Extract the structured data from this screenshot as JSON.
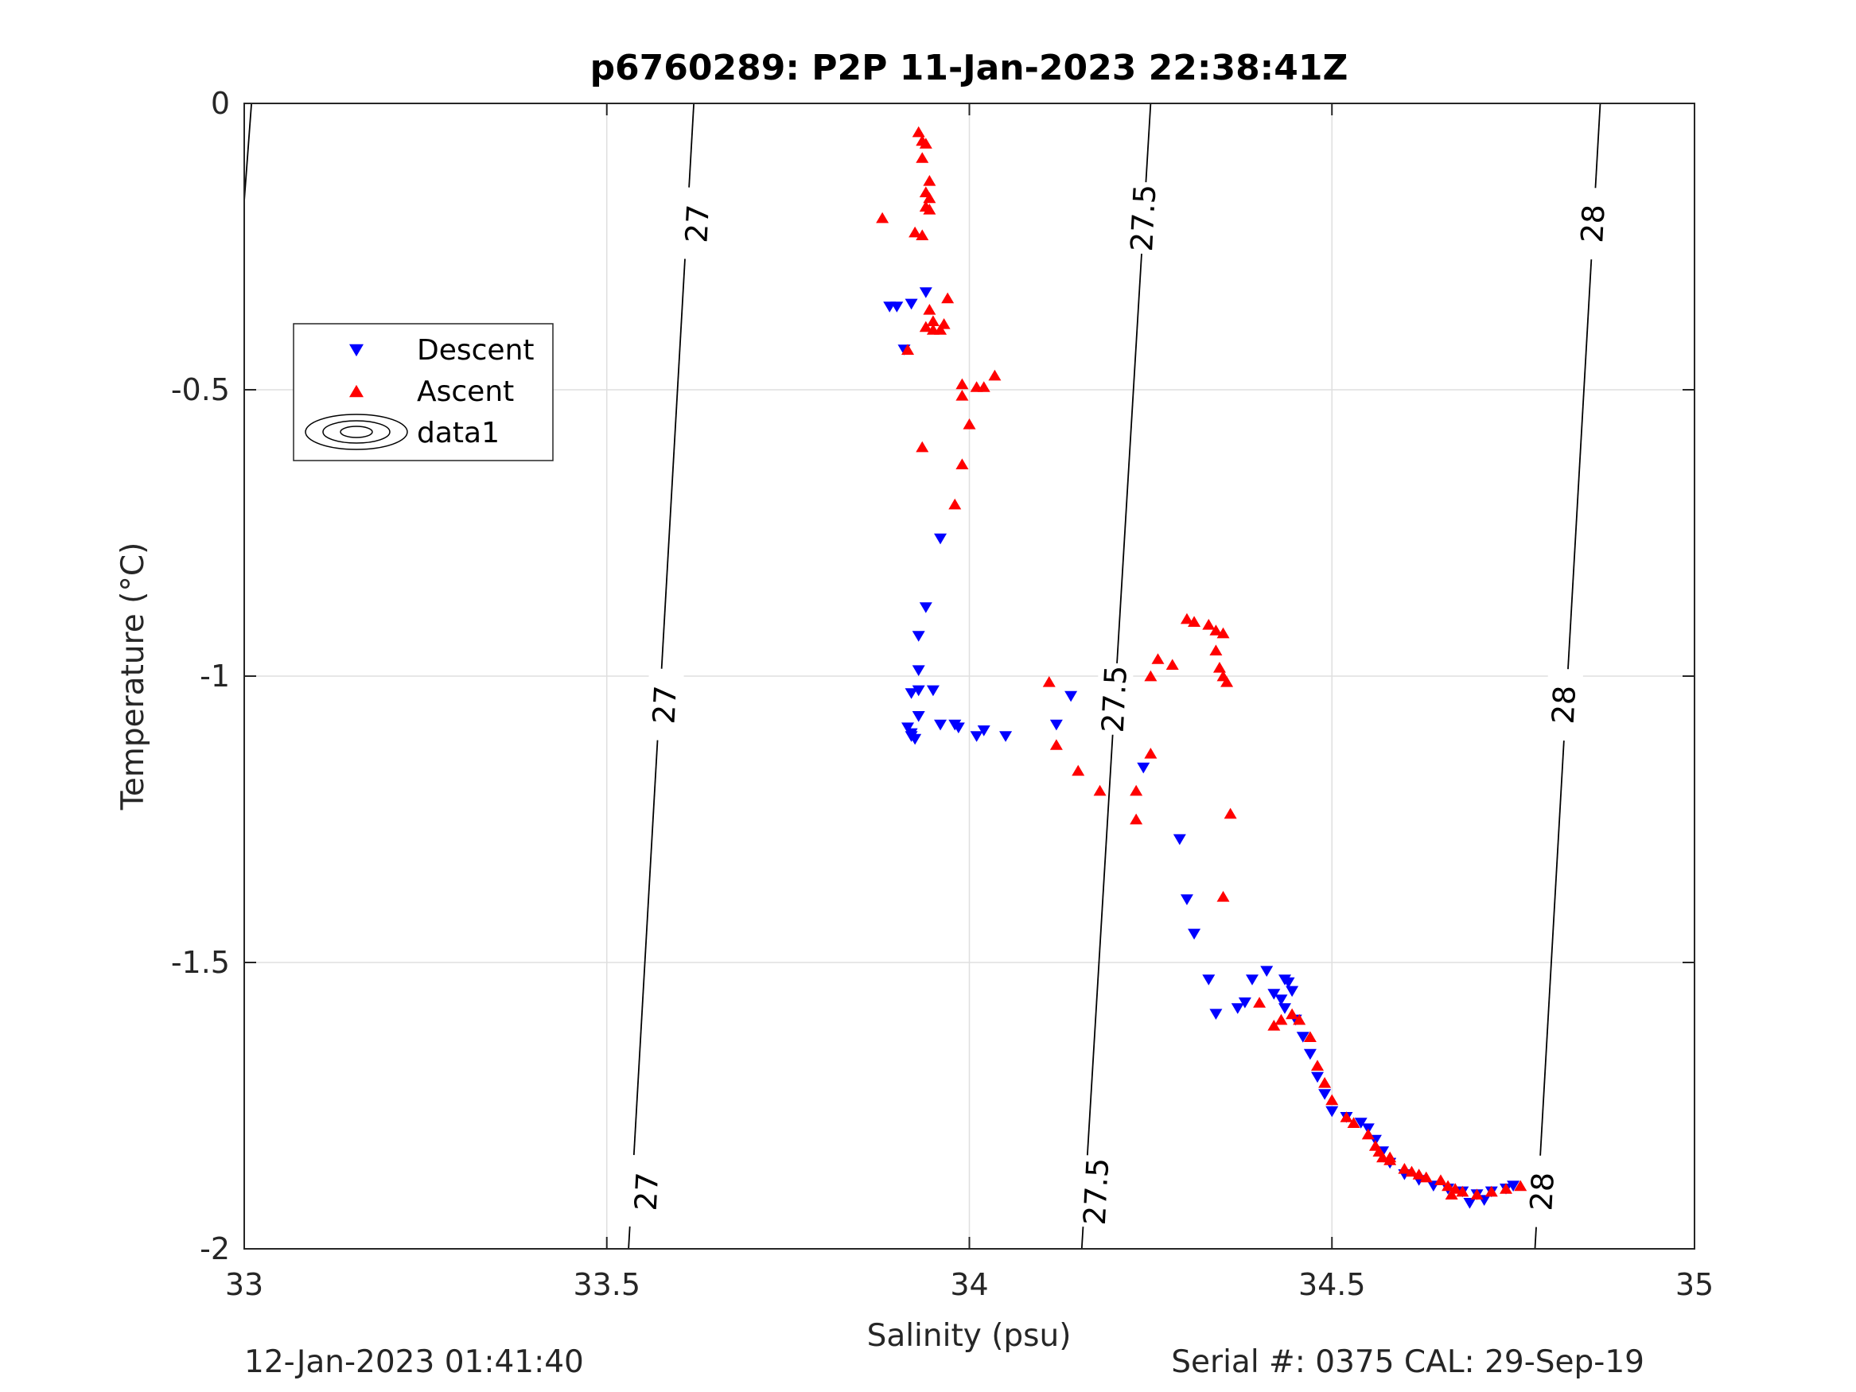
{
  "chart_data": {
    "type": "scatter",
    "title": "p6760289: P2P 11-Jan-2023 22:38:41Z",
    "xlabel": "Salinity (psu)",
    "ylabel": "Temperature (°C)",
    "xlim": [
      33,
      35
    ],
    "ylim": [
      -2,
      0
    ],
    "xticks": [
      33,
      33.5,
      34,
      34.5,
      35
    ],
    "xtick_labels": [
      "33",
      "33.5",
      "34",
      "34.5",
      "35"
    ],
    "yticks": [
      -2,
      -1.5,
      -1,
      -0.5,
      0
    ],
    "ytick_labels": [
      "-2",
      "-1.5",
      "-1",
      "-0.5",
      "0"
    ],
    "grid": true,
    "legend_position": "upper-left",
    "legend": [
      "Descent",
      "Ascent",
      "data1"
    ],
    "series": [
      {
        "name": "Descent",
        "marker": "triangle-down",
        "color": "#0000ff",
        "points": [
          [
            33.89,
            -0.355
          ],
          [
            33.9,
            -0.355
          ],
          [
            33.92,
            -0.35
          ],
          [
            33.94,
            -0.33
          ],
          [
            33.91,
            -0.43
          ],
          [
            33.96,
            -0.76
          ],
          [
            33.94,
            -0.88
          ],
          [
            33.93,
            -0.93
          ],
          [
            33.93,
            -0.99
          ],
          [
            33.92,
            -1.03
          ],
          [
            33.93,
            -1.025
          ],
          [
            33.95,
            -1.025
          ],
          [
            33.93,
            -1.07
          ],
          [
            33.915,
            -1.09
          ],
          [
            33.92,
            -1.1
          ],
          [
            33.92,
            -1.105
          ],
          [
            33.925,
            -1.11
          ],
          [
            33.96,
            -1.085
          ],
          [
            33.98,
            -1.085
          ],
          [
            33.985,
            -1.09
          ],
          [
            34.01,
            -1.105
          ],
          [
            34.02,
            -1.095
          ],
          [
            34.05,
            -1.105
          ],
          [
            34.12,
            -1.085
          ],
          [
            34.14,
            -1.035
          ],
          [
            34.24,
            -1.16
          ],
          [
            34.29,
            -1.285
          ],
          [
            34.3,
            -1.39
          ],
          [
            34.31,
            -1.45
          ],
          [
            34.33,
            -1.53
          ],
          [
            34.34,
            -1.59
          ],
          [
            34.37,
            -1.58
          ],
          [
            34.38,
            -1.57
          ],
          [
            34.39,
            -1.53
          ],
          [
            34.41,
            -1.515
          ],
          [
            34.42,
            -1.555
          ],
          [
            34.43,
            -1.565
          ],
          [
            34.435,
            -1.53
          ],
          [
            34.44,
            -1.535
          ],
          [
            34.445,
            -1.55
          ],
          [
            34.435,
            -1.58
          ],
          [
            34.45,
            -1.6
          ],
          [
            34.46,
            -1.63
          ],
          [
            34.47,
            -1.66
          ],
          [
            34.48,
            -1.7
          ],
          [
            34.49,
            -1.73
          ],
          [
            34.5,
            -1.76
          ],
          [
            34.52,
            -1.77
          ],
          [
            34.54,
            -1.78
          ],
          [
            34.55,
            -1.79
          ],
          [
            34.56,
            -1.81
          ],
          [
            34.57,
            -1.83
          ],
          [
            34.58,
            -1.85
          ],
          [
            34.6,
            -1.87
          ],
          [
            34.62,
            -1.88
          ],
          [
            34.64,
            -1.89
          ],
          [
            34.66,
            -1.895
          ],
          [
            34.68,
            -1.9
          ],
          [
            34.7,
            -1.905
          ],
          [
            34.72,
            -1.9
          ],
          [
            34.74,
            -1.895
          ],
          [
            34.75,
            -1.89
          ],
          [
            34.69,
            -1.92
          ],
          [
            34.71,
            -1.915
          ]
        ]
      },
      {
        "name": "Ascent",
        "marker": "triangle-up",
        "color": "#ff0000",
        "points": [
          [
            33.93,
            -0.05
          ],
          [
            33.935,
            -0.065
          ],
          [
            33.94,
            -0.07
          ],
          [
            33.935,
            -0.095
          ],
          [
            33.945,
            -0.135
          ],
          [
            33.94,
            -0.155
          ],
          [
            33.945,
            -0.165
          ],
          [
            33.94,
            -0.18
          ],
          [
            33.945,
            -0.185
          ],
          [
            33.88,
            -0.2
          ],
          [
            33.925,
            -0.225
          ],
          [
            33.935,
            -0.23
          ],
          [
            33.97,
            -0.34
          ],
          [
            33.945,
            -0.36
          ],
          [
            33.95,
            -0.38
          ],
          [
            33.965,
            -0.385
          ],
          [
            33.94,
            -0.39
          ],
          [
            33.95,
            -0.395
          ],
          [
            33.96,
            -0.395
          ],
          [
            33.915,
            -0.43
          ],
          [
            33.99,
            -0.49
          ],
          [
            34.01,
            -0.495
          ],
          [
            34.02,
            -0.495
          ],
          [
            34.035,
            -0.475
          ],
          [
            33.99,
            -0.51
          ],
          [
            34.0,
            -0.56
          ],
          [
            33.935,
            -0.6
          ],
          [
            33.99,
            -0.63
          ],
          [
            33.98,
            -0.7
          ],
          [
            34.11,
            -1.01
          ],
          [
            34.12,
            -1.12
          ],
          [
            34.15,
            -1.165
          ],
          [
            34.18,
            -1.2
          ],
          [
            34.23,
            -1.2
          ],
          [
            34.25,
            -1.135
          ],
          [
            34.23,
            -1.25
          ],
          [
            34.25,
            -1.0
          ],
          [
            34.26,
            -0.97
          ],
          [
            34.28,
            -0.98
          ],
          [
            34.3,
            -0.9
          ],
          [
            34.31,
            -0.905
          ],
          [
            34.33,
            -0.91
          ],
          [
            34.34,
            -0.92
          ],
          [
            34.35,
            -0.925
          ],
          [
            34.34,
            -0.955
          ],
          [
            34.345,
            -0.985
          ],
          [
            34.35,
            -1.0
          ],
          [
            34.355,
            -1.01
          ],
          [
            34.36,
            -1.24
          ],
          [
            34.35,
            -1.385
          ],
          [
            34.4,
            -1.57
          ],
          [
            34.42,
            -1.61
          ],
          [
            34.43,
            -1.6
          ],
          [
            34.445,
            -1.59
          ],
          [
            34.455,
            -1.6
          ],
          [
            34.47,
            -1.63
          ],
          [
            34.48,
            -1.68
          ],
          [
            34.49,
            -1.71
          ],
          [
            34.5,
            -1.74
          ],
          [
            34.52,
            -1.77
          ],
          [
            34.53,
            -1.78
          ],
          [
            34.55,
            -1.8
          ],
          [
            34.56,
            -1.82
          ],
          [
            34.57,
            -1.84
          ],
          [
            34.58,
            -1.845
          ],
          [
            34.6,
            -1.86
          ],
          [
            34.62,
            -1.87
          ],
          [
            34.63,
            -1.875
          ],
          [
            34.65,
            -1.88
          ],
          [
            34.66,
            -1.89
          ],
          [
            34.67,
            -1.895
          ],
          [
            34.68,
            -1.9
          ],
          [
            34.7,
            -1.905
          ],
          [
            34.72,
            -1.9
          ],
          [
            34.74,
            -1.895
          ],
          [
            34.76,
            -1.89
          ],
          [
            34.58,
            -1.84
          ],
          [
            34.565,
            -1.83
          ],
          [
            34.61,
            -1.865
          ],
          [
            34.665,
            -1.905
          ]
        ]
      }
    ],
    "contours": [
      {
        "label": "27",
        "line": [
          [
            33.62,
            0
          ],
          [
            33.53,
            -2
          ]
        ],
        "labels": [
          [
            33.625,
            -0.21
          ],
          [
            33.58,
            -1.05
          ],
          [
            33.555,
            -1.9
          ]
        ]
      },
      {
        "label": "27.5",
        "line": [
          [
            34.25,
            0
          ],
          [
            34.155,
            -2
          ]
        ],
        "labels": [
          [
            34.24,
            -0.2
          ],
          [
            34.2,
            -1.04
          ],
          [
            34.175,
            -1.9
          ]
        ]
      },
      {
        "label": "28",
        "line": [
          [
            34.87,
            0
          ],
          [
            34.78,
            -2
          ]
        ],
        "labels": [
          [
            34.86,
            -0.21
          ],
          [
            34.82,
            -1.05
          ],
          [
            34.79,
            -1.9
          ]
        ]
      },
      {
        "label": "",
        "line": [
          [
            33.01,
            0
          ],
          [
            33.0,
            -0.17
          ]
        ],
        "labels": []
      }
    ]
  },
  "footer": {
    "timestamp": "12-Jan-2023 01:41:40",
    "serial": "Serial #: 0375  CAL: 29-Sep-19"
  },
  "colors": {
    "descent": "#0000ff",
    "ascent": "#ff0000",
    "text": "#262626",
    "grid": "#dfdfdf"
  }
}
